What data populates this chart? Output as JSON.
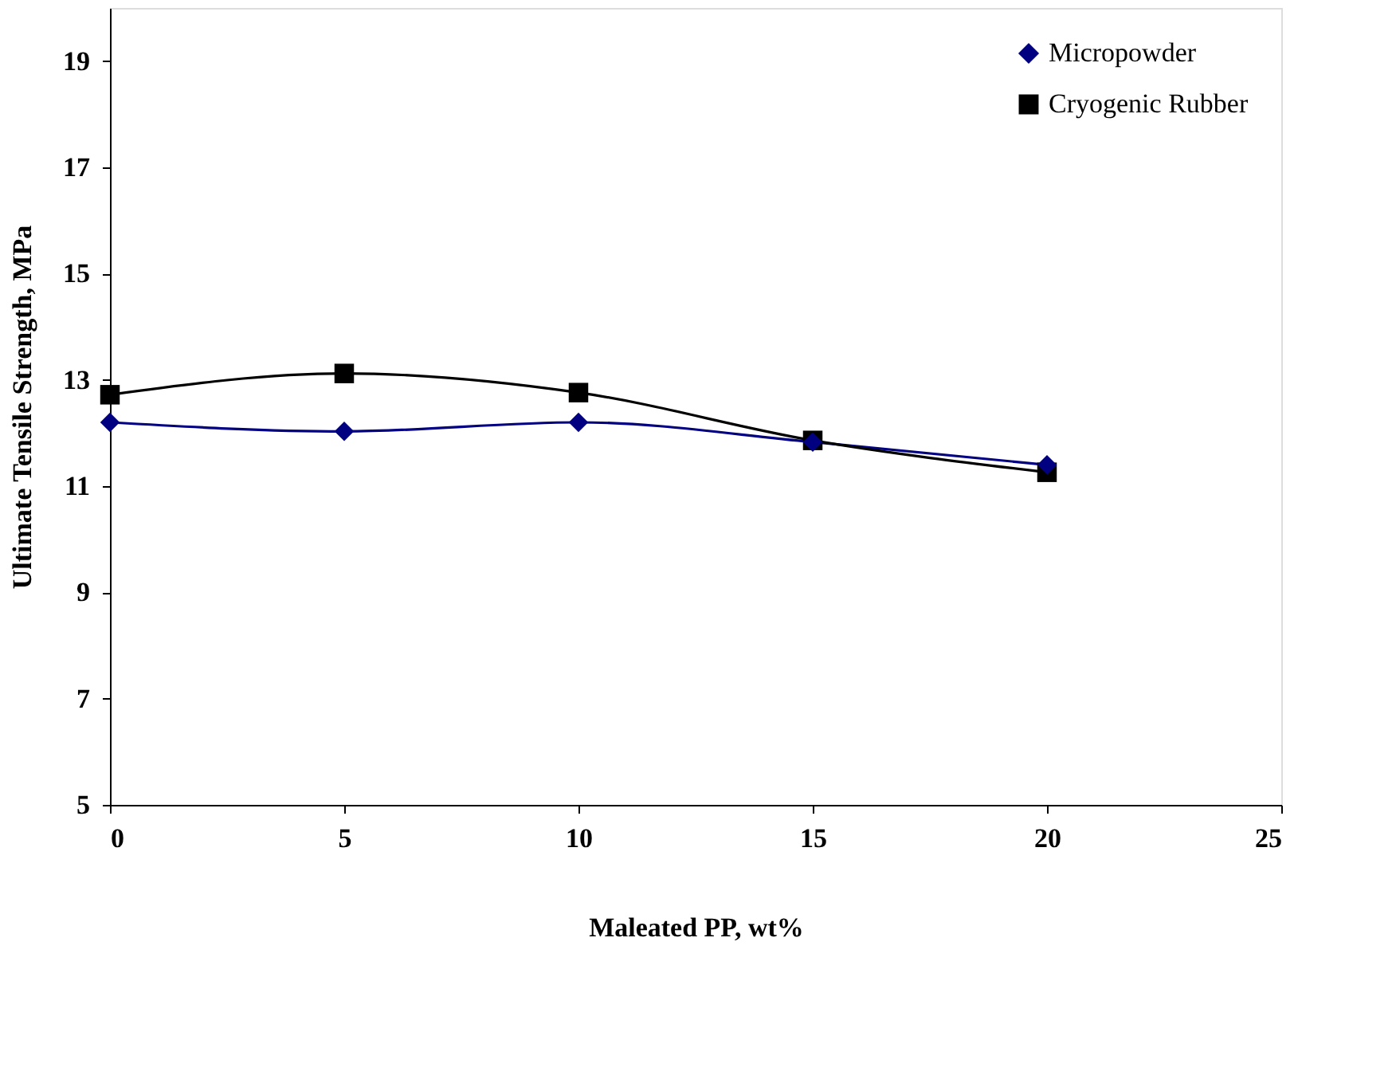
{
  "chart_data": {
    "type": "line",
    "xlabel": "Maleated PP, wt%",
    "ylabel": "Ultimate Tensile Strength, MPa",
    "x": [
      0,
      5,
      10,
      15,
      20
    ],
    "series": [
      {
        "name": "Micropowder",
        "color": "#000080",
        "marker": "diamond",
        "values": [
          12.2,
          12.03,
          12.2,
          11.83,
          11.4
        ]
      },
      {
        "name": "Cryogenic Rubber",
        "color": "#000000",
        "marker": "square",
        "values": [
          12.72,
          13.12,
          12.76,
          11.86,
          11.26
        ]
      }
    ],
    "xlim": [
      0,
      25
    ],
    "xticks": [
      0,
      5,
      10,
      15,
      20,
      25
    ],
    "ylim": [
      5,
      20
    ],
    "yticks": [
      5,
      7,
      9,
      11,
      13,
      15,
      17,
      19
    ],
    "grid": false,
    "legend": "top right",
    "line_style": "solid"
  }
}
